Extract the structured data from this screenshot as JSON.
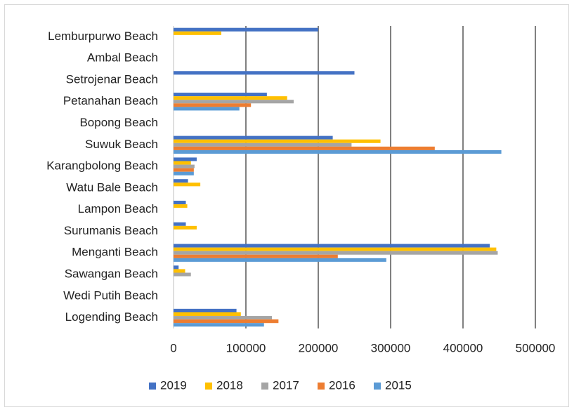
{
  "chart_data": {
    "type": "hbar",
    "categories": [
      "Lemburpurwo Beach",
      "Ambal Beach",
      "Setrojenar Beach",
      "Petanahan Beach",
      "Bopong Beach",
      "Suwuk Beach",
      "Karangbolong Beach",
      "Watu Bale Beach",
      "Lampon Beach",
      "Surumanis Beach",
      "Menganti Beach",
      "Sawangan Beach",
      "Wedi Putih Beach",
      "Logending Beach"
    ],
    "series": [
      {
        "name": "2019",
        "color": "#4472c4",
        "values": [
          200000,
          0,
          250000,
          129000,
          0,
          220000,
          32000,
          20000,
          17000,
          17000,
          437000,
          7000,
          0,
          87000
        ]
      },
      {
        "name": "2018",
        "color": "#ffc000",
        "values": [
          66000,
          0,
          0,
          157000,
          0,
          286000,
          24000,
          37000,
          19000,
          32000,
          446000,
          16000,
          0,
          93000
        ]
      },
      {
        "name": "2017",
        "color": "#a5a5a5",
        "values": [
          0,
          0,
          0,
          166000,
          0,
          246000,
          29000,
          0,
          0,
          0,
          448000,
          24000,
          0,
          136000
        ]
      },
      {
        "name": "2016",
        "color": "#ed7d31",
        "values": [
          0,
          0,
          0,
          107000,
          0,
          361000,
          28000,
          0,
          0,
          0,
          227000,
          0,
          0,
          145000
        ]
      },
      {
        "name": "2015",
        "color": "#5b9bd5",
        "values": [
          0,
          0,
          0,
          91000,
          0,
          453000,
          28000,
          0,
          0,
          0,
          294000,
          0,
          0,
          125000
        ]
      }
    ],
    "xlim": [
      0,
      500000
    ],
    "xticks": [
      0,
      100000,
      200000,
      300000,
      400000,
      500000
    ],
    "grid": true,
    "legend": "bottom"
  }
}
